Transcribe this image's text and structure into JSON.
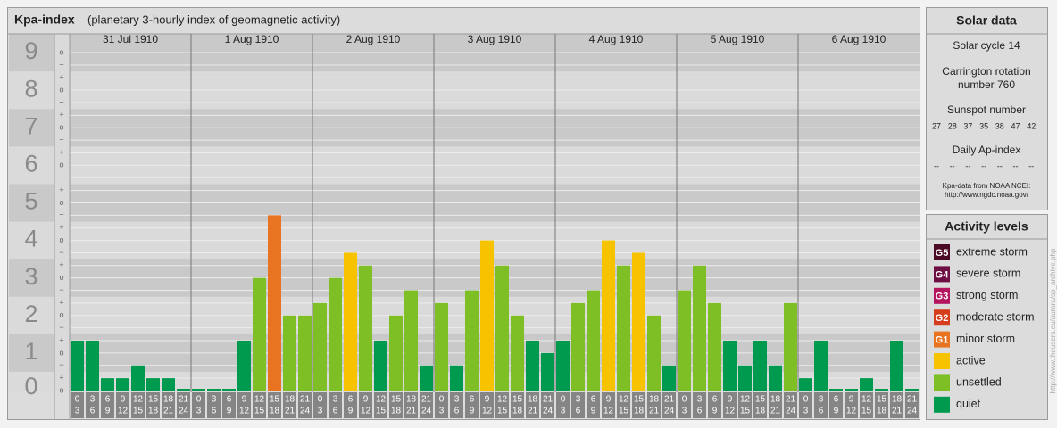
{
  "chart_data": {
    "type": "bar",
    "title": "Kpa-index",
    "subtitle": "(planetary 3-hourly index of geomagnetic activity)",
    "ylim": [
      0,
      9.5
    ],
    "yticks": [
      0,
      1,
      2,
      3,
      4,
      5,
      6,
      7,
      8,
      9
    ],
    "subticks": [
      {
        "value": 9,
        "label": "o"
      },
      {
        "value": 8.67,
        "label": "−"
      },
      {
        "value": 8.33,
        "label": "+"
      },
      {
        "value": 8,
        "label": "o"
      },
      {
        "value": 7.67,
        "label": "−"
      },
      {
        "value": 7.33,
        "label": "+"
      },
      {
        "value": 7,
        "label": "o"
      },
      {
        "value": 6.67,
        "label": "−"
      },
      {
        "value": 6.33,
        "label": "+"
      },
      {
        "value": 6,
        "label": "o"
      },
      {
        "value": 5.67,
        "label": "−"
      },
      {
        "value": 5.33,
        "label": "+"
      },
      {
        "value": 5,
        "label": "o"
      },
      {
        "value": 4.67,
        "label": "−"
      },
      {
        "value": 4.33,
        "label": "+"
      },
      {
        "value": 4,
        "label": "o"
      },
      {
        "value": 3.67,
        "label": "−"
      },
      {
        "value": 3.33,
        "label": "+"
      },
      {
        "value": 3,
        "label": "o"
      },
      {
        "value": 2.67,
        "label": "−"
      },
      {
        "value": 2.33,
        "label": "+"
      },
      {
        "value": 2,
        "label": "o"
      },
      {
        "value": 1.67,
        "label": "−"
      },
      {
        "value": 1.33,
        "label": "+"
      },
      {
        "value": 1,
        "label": "o"
      },
      {
        "value": 0.67,
        "label": "−"
      },
      {
        "value": 0.33,
        "label": "+"
      },
      {
        "value": 0,
        "label": "o"
      }
    ],
    "hours": [
      [
        "0",
        "3"
      ],
      [
        "3",
        "6"
      ],
      [
        "6",
        "9"
      ],
      [
        "9",
        "12"
      ],
      [
        "12",
        "15"
      ],
      [
        "15",
        "18"
      ],
      [
        "18",
        "21"
      ],
      [
        "21",
        "24"
      ]
    ],
    "days": [
      {
        "label": "31 Jul 1910",
        "values": [
          1.33,
          1.33,
          0.33,
          0.33,
          0.67,
          0.33,
          0.33,
          0
        ],
        "colors": [
          "#009a4e",
          "#009a4e",
          "#009a4e",
          "#009a4e",
          "#009a4e",
          "#009a4e",
          "#009a4e",
          "#009a4e"
        ]
      },
      {
        "label": "1 Aug 1910",
        "values": [
          0,
          0,
          0,
          1.33,
          3,
          4.67,
          2,
          2
        ],
        "colors": [
          "#009a4e",
          "#009a4e",
          "#009a4e",
          "#009a4e",
          "#7dbf25",
          "#e87422",
          "#7dbf25",
          "#7dbf25"
        ]
      },
      {
        "label": "2 Aug 1910",
        "values": [
          2.33,
          3,
          3.67,
          3.33,
          1.33,
          2,
          2.67,
          0.67
        ],
        "colors": [
          "#7dbf25",
          "#7dbf25",
          "#f7c300",
          "#7dbf25",
          "#009a4e",
          "#7dbf25",
          "#7dbf25",
          "#009a4e"
        ]
      },
      {
        "label": "3 Aug 1910",
        "values": [
          2.33,
          0.67,
          2.67,
          4,
          3.33,
          2,
          1.33,
          1
        ],
        "colors": [
          "#7dbf25",
          "#009a4e",
          "#7dbf25",
          "#f7c300",
          "#7dbf25",
          "#7dbf25",
          "#009a4e",
          "#009a4e"
        ]
      },
      {
        "label": "4 Aug 1910",
        "values": [
          1.33,
          2.33,
          2.67,
          4,
          3.33,
          3.67,
          2,
          0.67
        ],
        "colors": [
          "#009a4e",
          "#7dbf25",
          "#7dbf25",
          "#f7c300",
          "#7dbf25",
          "#f7c300",
          "#7dbf25",
          "#009a4e"
        ]
      },
      {
        "label": "5 Aug 1910",
        "values": [
          2.67,
          3.33,
          2.33,
          1.33,
          0.67,
          1.33,
          0.67,
          2.33
        ],
        "colors": [
          "#7dbf25",
          "#7dbf25",
          "#7dbf25",
          "#009a4e",
          "#009a4e",
          "#009a4e",
          "#009a4e",
          "#7dbf25"
        ]
      },
      {
        "label": "6 Aug 1910",
        "values": [
          0.33,
          1.33,
          0,
          0,
          0.33,
          0,
          1.33,
          0
        ],
        "colors": [
          "#009a4e",
          "#009a4e",
          "#009a4e",
          "#009a4e",
          "#009a4e",
          "#009a4e",
          "#009a4e",
          "#009a4e"
        ]
      }
    ]
  },
  "solar": {
    "title": "Solar data",
    "cycle": "Solar cycle 14",
    "carrington": [
      "Carrington rotation",
      "number 760"
    ],
    "sunspot_title": "Sunspot number",
    "sunspots": [
      27,
      28,
      37,
      35,
      38,
      47,
      42
    ],
    "ap_title": "Daily Ap-index",
    "ap": [
      "--",
      "--",
      "--",
      "--",
      "--",
      "--",
      "--"
    ],
    "source": [
      "Kpa-data from NOAA NCEI:",
      "http://www.ngdc.noaa.gov/"
    ]
  },
  "activity": {
    "title": "Activity levels",
    "levels": [
      {
        "code": "G5",
        "name": "extreme storm",
        "color": "#4d0a26"
      },
      {
        "code": "G4",
        "name": "severe storm",
        "color": "#6e0f44"
      },
      {
        "code": "G3",
        "name": "strong storm",
        "color": "#b3165f"
      },
      {
        "code": "G2",
        "name": "moderate storm",
        "color": "#d53d1c"
      },
      {
        "code": "G1",
        "name": "minor storm",
        "color": "#e87422"
      },
      {
        "name": "active",
        "color": "#f7c300"
      },
      {
        "name": "unsettled",
        "color": "#7dbf25"
      },
      {
        "name": "quiet",
        "color": "#009a4e"
      }
    ]
  },
  "credit": "http://www.theusers.eu/aurora/sp_archive.php"
}
